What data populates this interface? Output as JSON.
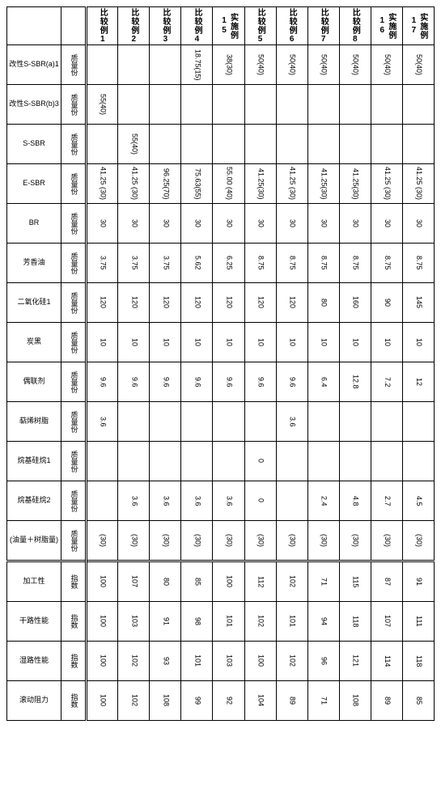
{
  "columns": [
    "比较例1",
    "比较例2",
    "比较例3",
    "比较例4",
    "实施例15",
    "比较例5",
    "比较例6",
    "比较例7",
    "比较例8",
    "实施例16",
    "实施例17"
  ],
  "ingredients": [
    {
      "name": "改性S-SBR(a)1",
      "unit": "质量份",
      "vals": [
        "",
        "",
        "",
        "18.75(15)",
        "38(30)",
        "50(40)",
        "50(40)",
        "50(40)",
        "50(40)",
        "50(40)",
        "50(40)"
      ]
    },
    {
      "name": "改性S-SBR(b)3",
      "unit": "质量份",
      "vals": [
        "55(40)",
        "",
        "",
        "",
        "",
        "",
        "",
        "",
        "",
        "",
        ""
      ]
    },
    {
      "name": "S-SBR",
      "unit": "质量份",
      "vals": [
        "",
        "55(40)",
        "",
        "",
        "",
        "",
        "",
        "",
        "",
        "",
        ""
      ]
    },
    {
      "name": "E-SBR",
      "unit": "质量份",
      "vals": [
        "41.25 (30)",
        "41.25 (30)",
        "96.25(70)",
        "75.63(55)",
        "55.00 (40)",
        "41.25(30)",
        "41.25 (30)",
        "41.25(30)",
        "41.25(30)",
        "41.25 (30)",
        "41.25 (30)"
      ]
    },
    {
      "name": "BR",
      "unit": "质量份",
      "vals": [
        "30",
        "30",
        "30",
        "30",
        "30",
        "30",
        "30",
        "30",
        "30",
        "30",
        "30"
      ]
    },
    {
      "name": "芳香油",
      "unit": "质量份",
      "vals": [
        "3.75",
        "3.75",
        "3.75",
        "5.62",
        "6.25",
        "8.75",
        "8.75",
        "8.75",
        "8.75",
        "8.75",
        "8.75"
      ]
    },
    {
      "name": "二氧化硅1",
      "unit": "质量份",
      "vals": [
        "120",
        "120",
        "120",
        "120",
        "120",
        "120",
        "120",
        "80",
        "160",
        "90",
        "145"
      ]
    },
    {
      "name": "炭黑",
      "unit": "质量份",
      "vals": [
        "10",
        "10",
        "10",
        "10",
        "10",
        "10",
        "10",
        "10",
        "10",
        "10",
        "10"
      ]
    },
    {
      "name": "偶联剂",
      "unit": "质量份",
      "vals": [
        "9.6",
        "9.6",
        "9.6",
        "9.6",
        "9.6",
        "9.6",
        "9.6",
        "6.4",
        "12.8",
        "7.2",
        "12"
      ]
    },
    {
      "name": "萜烯树脂",
      "unit": "质量份",
      "vals": [
        "3.6",
        "",
        "",
        "",
        "",
        "",
        "3.6",
        "",
        "",
        "",
        ""
      ]
    },
    {
      "name": "烷基硅烷1",
      "unit": "质量份",
      "vals": [
        "",
        "",
        "",
        "",
        "",
        "0",
        "",
        "",
        "",
        "",
        ""
      ]
    },
    {
      "name": "烷基硅烷2",
      "unit": "质量份",
      "vals": [
        "",
        "3.6",
        "3.6",
        "3.6",
        "3.6",
        "0",
        "",
        "2.4",
        "4.8",
        "2.7",
        "4.5"
      ]
    },
    {
      "name": "(油量＋树脂量)",
      "unit": "质量份",
      "vals": [
        "(30)",
        "(30)",
        "(30)",
        "(30)",
        "(30)",
        "(30)",
        "(30)",
        "(30)",
        "(30)",
        "(30)",
        "(30)"
      ]
    }
  ],
  "results": [
    {
      "name": "加工性",
      "unit": "指数",
      "vals": [
        "100",
        "107",
        "80",
        "85",
        "100",
        "112",
        "102",
        "71",
        "115",
        "87",
        "91"
      ]
    },
    {
      "name": "干路性能",
      "unit": "指数",
      "vals": [
        "100",
        "103",
        "91",
        "98",
        "101",
        "102",
        "101",
        "94",
        "118",
        "107",
        "111"
      ]
    },
    {
      "name": "湿路性能",
      "unit": "指数",
      "vals": [
        "100",
        "102",
        "93",
        "101",
        "103",
        "100",
        "102",
        "96",
        "121",
        "114",
        "118"
      ]
    },
    {
      "name": "滚动阻力",
      "unit": "指数",
      "vals": [
        "100",
        "102",
        "108",
        "99",
        "92",
        "104",
        "89",
        "71",
        "108",
        "89",
        "85"
      ]
    }
  ]
}
